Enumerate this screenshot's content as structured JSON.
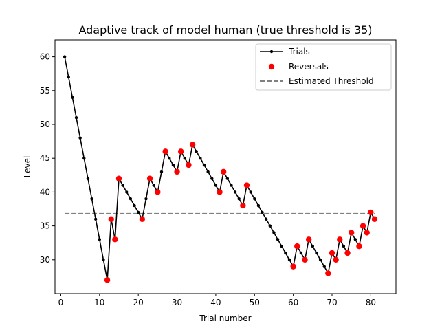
{
  "chart_data": {
    "type": "line",
    "title": "Adaptive track of model human (true threshold is 35)",
    "xlabel": "Trial number",
    "ylabel": "Level",
    "xlim": [
      -1.5,
      86.5
    ],
    "ylim": [
      25,
      62.5
    ],
    "xticks": [
      0,
      10,
      20,
      30,
      40,
      50,
      60,
      70,
      80
    ],
    "yticks": [
      30,
      35,
      40,
      45,
      50,
      55,
      60
    ],
    "grid": false,
    "legend_position": "top-right",
    "series": [
      {
        "name": "Trials",
        "style": "line-with-points",
        "color": "#000000",
        "x": [
          1,
          2,
          3,
          4,
          5,
          6,
          7,
          8,
          9,
          10,
          11,
          12,
          13,
          14,
          15,
          16,
          17,
          18,
          19,
          20,
          21,
          22,
          23,
          24,
          25,
          26,
          27,
          28,
          29,
          30,
          31,
          32,
          33,
          34,
          35,
          36,
          37,
          38,
          39,
          40,
          41,
          42,
          43,
          44,
          45,
          46,
          47,
          48,
          49,
          50,
          51,
          52,
          53,
          54,
          55,
          56,
          57,
          58,
          59,
          60,
          61,
          62,
          63,
          64,
          65,
          66,
          67,
          68,
          69,
          70,
          71,
          72,
          73,
          74,
          75,
          76,
          77,
          78,
          79,
          80,
          81
        ],
        "y": [
          60,
          57,
          54,
          51,
          48,
          45,
          42,
          39,
          36,
          33,
          30,
          27,
          36,
          33,
          42,
          41,
          40,
          39,
          38,
          37,
          36,
          39,
          42,
          41,
          40,
          43,
          46,
          45,
          44,
          43,
          46,
          45,
          44,
          47,
          46,
          45,
          44,
          43,
          42,
          41,
          40,
          43,
          42,
          41,
          40,
          39,
          38,
          41,
          40,
          39,
          38,
          37,
          36,
          35,
          34,
          33,
          32,
          31,
          30,
          29,
          32,
          31,
          30,
          33,
          32,
          31,
          30,
          29,
          28,
          31,
          30,
          33,
          32,
          31,
          34,
          33,
          32,
          35,
          34,
          37,
          36
        ]
      },
      {
        "name": "Reversals",
        "style": "points",
        "color": "#ff0000",
        "x": [
          12,
          13,
          14,
          15,
          21,
          23,
          25,
          27,
          30,
          31,
          33,
          34,
          41,
          42,
          47,
          48,
          60,
          61,
          63,
          64,
          69,
          70,
          71,
          72,
          74,
          75,
          77,
          78,
          79,
          80,
          81
        ],
        "y": [
          27,
          36,
          33,
          42,
          36,
          42,
          40,
          46,
          43,
          46,
          44,
          47,
          40,
          43,
          38,
          41,
          29,
          32,
          30,
          33,
          28,
          31,
          30,
          33,
          31,
          34,
          32,
          35,
          34,
          37,
          36
        ]
      },
      {
        "name": "Estimated Threshold",
        "style": "dashed-line",
        "color": "#808080",
        "x": [
          1,
          81
        ],
        "y": [
          36.8,
          36.8
        ]
      }
    ]
  }
}
